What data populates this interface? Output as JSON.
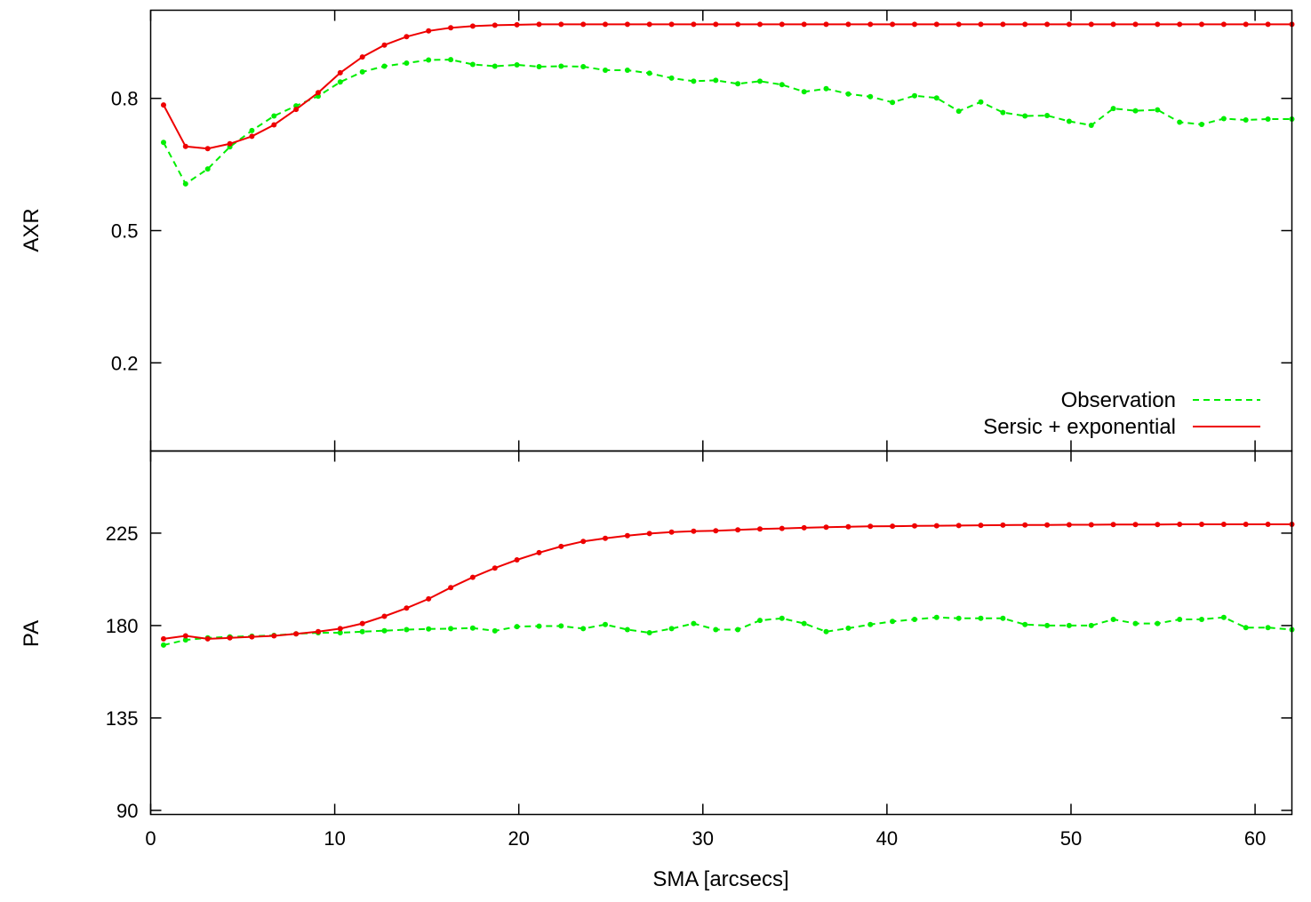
{
  "colors": {
    "observation": "#00ee00",
    "model": "#ee0000",
    "axes": "#000000"
  },
  "chart_data": [
    {
      "type": "line",
      "ylabel": "AXR",
      "xlim": [
        0,
        62
      ],
      "ylim": [
        0,
        1
      ],
      "yticks": [
        {
          "value": 0.2,
          "label": "0.2"
        },
        {
          "value": 0.5,
          "label": "0.5"
        },
        {
          "value": 0.8,
          "label": "0.8"
        }
      ],
      "legend": {
        "position": "bottom-right"
      },
      "series": [
        {
          "name": "Observation",
          "style": "dashed",
          "color": "#00ee00",
          "x": [
            0.7,
            1.9,
            3.1,
            4.3,
            5.5,
            6.7,
            7.9,
            9.1,
            10.3,
            11.5,
            12.7,
            13.9,
            15.1,
            16.3,
            17.5,
            18.7,
            19.9,
            21.1,
            22.3,
            23.5,
            24.7,
            25.9,
            27.1,
            28.3,
            29.5,
            30.7,
            31.9,
            33.1,
            34.3,
            35.5,
            36.7,
            37.9,
            39.1,
            40.3,
            41.5,
            42.7,
            43.9,
            45.1,
            46.3,
            47.5,
            48.7,
            49.9,
            51.1,
            52.3,
            53.5,
            54.7,
            55.9,
            57.1,
            58.3,
            59.5,
            60.7,
            62.0
          ],
          "y": [
            0.7,
            0.606,
            0.64,
            0.69,
            0.727,
            0.76,
            0.783,
            0.805,
            0.837,
            0.86,
            0.873,
            0.88,
            0.887,
            0.888,
            0.877,
            0.873,
            0.876,
            0.872,
            0.873,
            0.872,
            0.864,
            0.864,
            0.857,
            0.846,
            0.839,
            0.841,
            0.833,
            0.839,
            0.831,
            0.815,
            0.822,
            0.81,
            0.804,
            0.791,
            0.806,
            0.801,
            0.771,
            0.792,
            0.768,
            0.76,
            0.761,
            0.748,
            0.739,
            0.777,
            0.772,
            0.774,
            0.746,
            0.741,
            0.754,
            0.751,
            0.753,
            0.753
          ]
        },
        {
          "name": "Sersic + exponential",
          "style": "solid",
          "color": "#ee0000",
          "x": [
            0.7,
            1.9,
            3.1,
            4.3,
            5.5,
            6.7,
            7.9,
            9.1,
            10.3,
            11.5,
            12.7,
            13.9,
            15.1,
            16.3,
            17.5,
            18.7,
            19.9,
            21.1,
            22.3,
            23.5,
            24.7,
            25.9,
            27.1,
            28.3,
            29.5,
            30.7,
            31.9,
            33.1,
            34.3,
            35.5,
            36.7,
            37.9,
            39.1,
            40.3,
            41.5,
            42.7,
            43.9,
            45.1,
            46.3,
            47.5,
            48.7,
            49.9,
            51.1,
            52.3,
            53.5,
            54.7,
            55.9,
            57.1,
            58.3,
            59.5,
            60.7,
            62.0
          ],
          "y": [
            0.785,
            0.691,
            0.686,
            0.697,
            0.714,
            0.74,
            0.775,
            0.813,
            0.858,
            0.894,
            0.921,
            0.94,
            0.953,
            0.96,
            0.964,
            0.966,
            0.967,
            0.968,
            0.968,
            0.968,
            0.968,
            0.968,
            0.968,
            0.968,
            0.968,
            0.968,
            0.968,
            0.968,
            0.968,
            0.968,
            0.968,
            0.968,
            0.968,
            0.968,
            0.968,
            0.968,
            0.968,
            0.968,
            0.968,
            0.968,
            0.968,
            0.968,
            0.968,
            0.968,
            0.968,
            0.968,
            0.968,
            0.968,
            0.968,
            0.968,
            0.968,
            0.968
          ]
        }
      ]
    },
    {
      "type": "line",
      "ylabel": "PA",
      "xlabel": "SMA [arcsecs]",
      "xlim": [
        0,
        62
      ],
      "ylim": [
        88,
        265
      ],
      "xticks": [
        {
          "value": 0,
          "label": "0"
        },
        {
          "value": 10,
          "label": "10"
        },
        {
          "value": 20,
          "label": "20"
        },
        {
          "value": 30,
          "label": "30"
        },
        {
          "value": 40,
          "label": "40"
        },
        {
          "value": 50,
          "label": "50"
        },
        {
          "value": 60,
          "label": "60"
        }
      ],
      "yticks": [
        {
          "value": 90,
          "label": "90"
        },
        {
          "value": 135,
          "label": "135"
        },
        {
          "value": 180,
          "label": "180"
        },
        {
          "value": 225,
          "label": "225"
        }
      ],
      "series": [
        {
          "name": "Observation",
          "style": "dashed",
          "color": "#00ee00",
          "x": [
            0.7,
            1.9,
            3.1,
            4.3,
            5.5,
            6.7,
            7.9,
            9.1,
            10.3,
            11.5,
            12.7,
            13.9,
            15.1,
            16.3,
            17.5,
            18.7,
            19.9,
            21.1,
            22.3,
            23.5,
            24.7,
            25.9,
            27.1,
            28.3,
            29.5,
            30.7,
            31.9,
            33.1,
            34.3,
            35.5,
            36.7,
            37.9,
            39.1,
            40.3,
            41.5,
            42.7,
            43.9,
            45.1,
            46.3,
            47.5,
            48.7,
            49.9,
            51.1,
            52.3,
            53.5,
            54.7,
            55.9,
            57.1,
            58.3,
            59.5,
            60.7,
            62.0
          ],
          "y": [
            170.5,
            173,
            174,
            174.5,
            174.8,
            175.2,
            176,
            176.5,
            176.5,
            177,
            177.5,
            178,
            178.3,
            178.5,
            178.8,
            177.4,
            179.5,
            179.7,
            179.8,
            178.5,
            180.5,
            178,
            176.5,
            178.5,
            181,
            178,
            178,
            182.5,
            183.5,
            181,
            177,
            178.7,
            180.5,
            182,
            183,
            184,
            183.5,
            183.5,
            183.5,
            180.5,
            180,
            180,
            180,
            183,
            181,
            181,
            183,
            183,
            184,
            179,
            179,
            178
          ]
        },
        {
          "name": "Sersic + exponential",
          "style": "solid",
          "color": "#ee0000",
          "x": [
            0.7,
            1.9,
            3.1,
            4.3,
            5.5,
            6.7,
            7.9,
            9.1,
            10.3,
            11.5,
            12.7,
            13.9,
            15.1,
            16.3,
            17.5,
            18.7,
            19.9,
            21.1,
            22.3,
            23.5,
            24.7,
            25.9,
            27.1,
            28.3,
            29.5,
            30.7,
            31.9,
            33.1,
            34.3,
            35.5,
            36.7,
            37.9,
            39.1,
            40.3,
            41.5,
            42.7,
            43.9,
            45.1,
            46.3,
            47.5,
            48.7,
            49.9,
            51.1,
            52.3,
            53.5,
            54.7,
            55.9,
            57.1,
            58.3,
            59.5,
            60.7,
            62.0
          ],
          "y": [
            173.5,
            175,
            173.5,
            174,
            174.5,
            175,
            176,
            177,
            178.5,
            181,
            184.5,
            188.5,
            193,
            198.5,
            203.5,
            208,
            212,
            215.5,
            218.5,
            221,
            222.5,
            223.8,
            224.8,
            225.5,
            225.9,
            226.2,
            226.6,
            227,
            227.3,
            227.6,
            227.9,
            228.1,
            228.3,
            228.4,
            228.5,
            228.6,
            228.7,
            228.8,
            228.9,
            229,
            229,
            229.1,
            229.1,
            229.2,
            229.2,
            229.2,
            229.3,
            229.3,
            229.3,
            229.3,
            229.3,
            229.3
          ]
        }
      ]
    }
  ]
}
